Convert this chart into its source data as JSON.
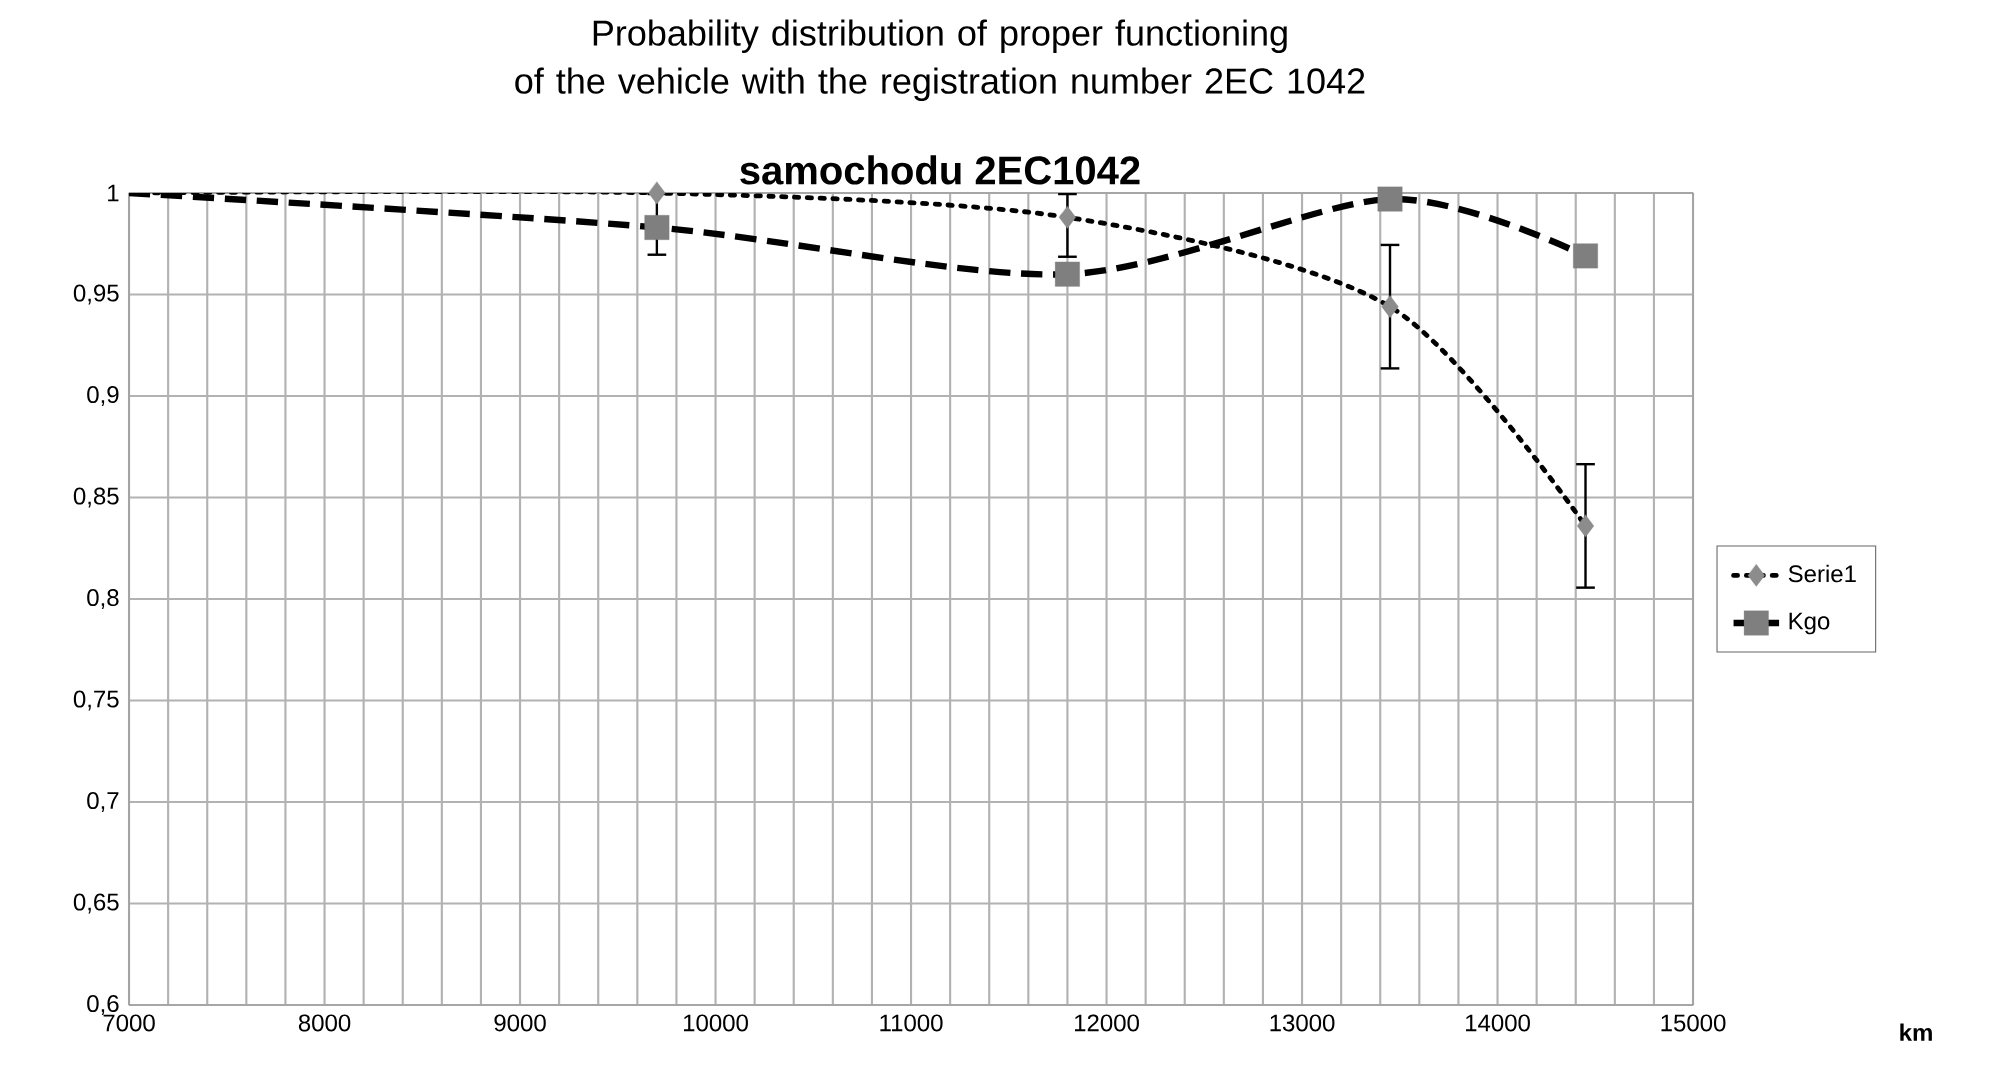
{
  "chart_data": {
    "type": "line",
    "title": "Probability distribution of proper functioning\nof the vehicle with the registration number 2EC 1042",
    "subtitle": "samochodu 2EC1042",
    "annotations": [
      "km"
    ],
    "x": [
      7000,
      9700,
      11800,
      13450,
      14450
    ],
    "series": [
      {
        "name": "Serie1",
        "color": "#8c8c8c",
        "line_style": "dotted",
        "marker": "diamond",
        "values": [
          1.0,
          1.0,
          0.988,
          0.944,
          0.836
        ],
        "errors": [
          null,
          [
            0.969,
            1.0
          ],
          [
            0.968,
            1.0
          ],
          [
            0.913,
            0.975
          ],
          [
            0.805,
            0.867
          ]
        ]
      },
      {
        "name": "Kgo",
        "color": "#7f7f7f",
        "line_style": "dashed",
        "marker": "square",
        "values": [
          1.0,
          0.983,
          0.96,
          0.997,
          0.969
        ]
      }
    ],
    "xlim": [
      7000,
      15000
    ],
    "ylim": [
      0.6,
      1
    ],
    "xticks": [
      7000,
      8000,
      9000,
      10000,
      11000,
      12000,
      13000,
      14000,
      15000
    ],
    "yticks": [
      {
        "value": 0.6,
        "label": "0,6"
      },
      {
        "value": 0.65,
        "label": "0,65"
      },
      {
        "value": 0.7,
        "label": "0,7"
      },
      {
        "value": 0.75,
        "label": "0,75"
      },
      {
        "value": 0.8,
        "label": "0,8"
      },
      {
        "value": 0.85,
        "label": "0,85"
      },
      {
        "value": 0.9,
        "label": "0,9"
      },
      {
        "value": 0.95,
        "label": "0,95"
      },
      {
        "value": 1,
        "label": "1"
      }
    ],
    "grid": true,
    "legend": "right"
  }
}
